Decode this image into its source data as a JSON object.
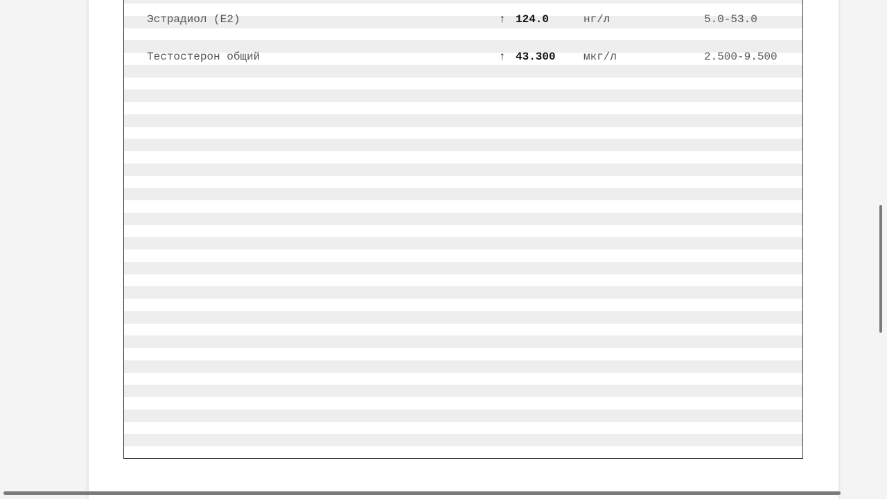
{
  "results": [
    {
      "name": "Эстрадиол (E2)",
      "flag": "↑",
      "value": "124.0",
      "unit": "нг/л",
      "reference": "5.0-53.0"
    },
    {
      "name": "Тестостерон общий",
      "flag": "↑",
      "value": "43.300",
      "unit": "мкг/л",
      "reference": "2.500-9.500"
    }
  ]
}
